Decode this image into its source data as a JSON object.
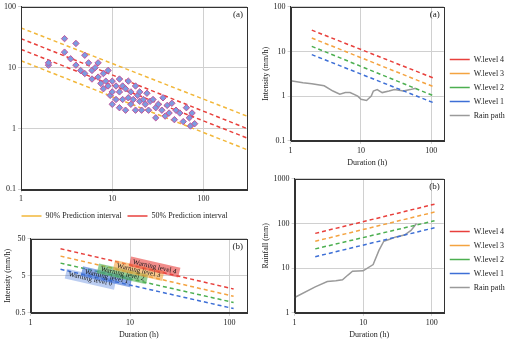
{
  "chart_data": [
    {
      "type": "scatter",
      "title": "(a)",
      "log": true,
      "grid": true,
      "legend": "bottom",
      "xlim": [
        1,
        300
      ],
      "ylim": [
        0.1,
        100
      ],
      "xticks": [
        1,
        10,
        100
      ],
      "yticks": [
        0.1,
        1,
        10,
        100
      ],
      "points": {
        "color": "#7b9be0",
        "marker": "diamond",
        "x": [
          2,
          2,
          3,
          3,
          3.5,
          4,
          4,
          4.5,
          5,
          5,
          5.5,
          6,
          6,
          6.5,
          7,
          7,
          7.5,
          8,
          8,
          8.5,
          9,
          9,
          9.5,
          10,
          10,
          10,
          11,
          11,
          12,
          12,
          12,
          13,
          13,
          14,
          14,
          15,
          15,
          16,
          16,
          17,
          18,
          18,
          19,
          20,
          20,
          21,
          22,
          23,
          24,
          25,
          26,
          28,
          30,
          30,
          32,
          35,
          36,
          38,
          40,
          42,
          45,
          48,
          50,
          55,
          60,
          65,
          70,
          72,
          75,
          80
        ],
        "y": [
          11,
          12,
          18,
          30,
          14,
          25,
          11,
          9,
          16,
          8,
          12,
          9,
          6.5,
          10,
          7,
          12,
          5.5,
          8,
          4.5,
          6,
          9,
          5,
          3.5,
          6,
          4,
          2.5,
          5,
          3,
          6.5,
          4,
          2.2,
          5,
          3,
          4.5,
          2,
          6,
          3.2,
          4,
          2.5,
          3,
          5,
          2,
          3.5,
          2.8,
          4,
          2,
          3,
          2.5,
          3.8,
          2,
          2.8,
          3,
          2.2,
          1.5,
          2.5,
          2,
          3.2,
          1.6,
          2.4,
          1.8,
          2.6,
          1.4,
          2,
          1.8,
          1.3,
          2.2,
          1.5,
          1.1,
          1.8,
          1.2
        ]
      },
      "series": [
        {
          "name": "90% Prediction interval",
          "color": "#f2b73a",
          "line_style": "dashed",
          "x": [
            1,
            300
          ],
          "upper": [
            45,
            1.6
          ],
          "lower": [
            13,
            0.45
          ]
        },
        {
          "name": "50% Prediction interval",
          "color": "#e8403c",
          "line_style": "dashed",
          "x": [
            1,
            300
          ],
          "upper": [
            30,
            1.0
          ],
          "lower": [
            20,
            0.7
          ]
        }
      ]
    },
    {
      "type": "line",
      "title": "(b)",
      "log": true,
      "grid": true,
      "x_label": "Duration (h)",
      "y_label": "Intensity (mm/h)",
      "xlim": [
        1,
        150
      ],
      "ylim": [
        0.5,
        50
      ],
      "xticks": [
        1,
        10,
        100
      ],
      "yticks": [
        0.5,
        5,
        50
      ],
      "series": [
        {
          "color": "#3d6fd6",
          "line_style": "dashed",
          "x": [
            2,
            110
          ],
          "values": [
            7.5,
            0.65
          ]
        },
        {
          "color": "#4caf50",
          "line_style": "dashed",
          "x": [
            2,
            110
          ],
          "values": [
            11,
            0.95
          ]
        },
        {
          "color": "#f4a340",
          "line_style": "dashed",
          "x": [
            2,
            110
          ],
          "values": [
            17,
            1.4
          ]
        },
        {
          "color": "#e8403c",
          "line_style": "dashed",
          "x": [
            2,
            110
          ],
          "values": [
            27,
            2.2
          ]
        }
      ],
      "annotations": [
        "Warning level 0",
        "Warning level 1",
        "Warning level 2",
        "Warning level 3",
        "Warning level 4"
      ]
    },
    {
      "type": "line",
      "title": "(a)",
      "log": true,
      "grid": true,
      "legend": "right",
      "x_label": "Duration (h)",
      "y_label": "Intensity (mm/h)",
      "xlim": [
        1,
        150
      ],
      "ylim": [
        0.1,
        100
      ],
      "xticks": [
        1,
        10,
        100
      ],
      "yticks": [
        0.1,
        1,
        10,
        100
      ],
      "series": [
        {
          "name": "W.level 4",
          "color": "#e8403c",
          "line_style": "dashed",
          "x": [
            2,
            110
          ],
          "values": [
            30,
            2.5
          ]
        },
        {
          "name": "W.level 3",
          "color": "#f4a340",
          "line_style": "dashed",
          "x": [
            2,
            110
          ],
          "values": [
            20,
            1.6
          ]
        },
        {
          "name": "W.level 2",
          "color": "#4caf50",
          "line_style": "dashed",
          "x": [
            2,
            110
          ],
          "values": [
            13,
            1.0
          ]
        },
        {
          "name": "W.level 1",
          "color": "#3d6fd6",
          "line_style": "dashed",
          "x": [
            2,
            110
          ],
          "values": [
            8.5,
            0.7
          ]
        },
        {
          "name": "Rain path",
          "color": "#9a9a9a",
          "line_style": "solid",
          "x": [
            1,
            1.5,
            2,
            3,
            4,
            5,
            6,
            7,
            9,
            10,
            12,
            14,
            15,
            17,
            20,
            25,
            30,
            40,
            50,
            60
          ],
          "values": [
            2.2,
            2.0,
            1.9,
            1.7,
            1.3,
            1.1,
            1.2,
            1.2,
            1.0,
            0.85,
            0.8,
            1.0,
            1.3,
            1.4,
            1.2,
            1.3,
            1.4,
            1.3,
            1.4,
            1.5
          ]
        }
      ]
    },
    {
      "type": "line",
      "title": "(b)",
      "log": true,
      "grid": true,
      "legend": "right",
      "x_label": "Duration (h)",
      "y_label": "Rainfall (mm)",
      "xlim": [
        1,
        150
      ],
      "ylim": [
        1,
        1000
      ],
      "xticks": [
        1,
        10,
        100
      ],
      "yticks": [
        1,
        10,
        100,
        1000
      ],
      "series": [
        {
          "name": "W.level 4",
          "color": "#e8403c",
          "line_style": "dashed",
          "x": [
            2,
            110
          ],
          "values": [
            60,
            270
          ]
        },
        {
          "name": "W.level 3",
          "color": "#f4a340",
          "line_style": "dashed",
          "x": [
            2,
            110
          ],
          "values": [
            40,
            180
          ]
        },
        {
          "name": "W.level 2",
          "color": "#4caf50",
          "line_style": "dashed",
          "x": [
            2,
            110
          ],
          "values": [
            27,
            115
          ]
        },
        {
          "name": "W.level 1",
          "color": "#3d6fd6",
          "line_style": "dashed",
          "x": [
            2,
            110
          ],
          "values": [
            18,
            80
          ]
        },
        {
          "name": "Rain path",
          "color": "#9a9a9a",
          "line_style": "solid",
          "x": [
            1,
            2,
            3,
            4,
            5,
            6,
            7,
            10,
            14,
            17,
            20,
            25,
            30,
            40,
            50,
            60
          ],
          "values": [
            2.2,
            3.8,
            5,
            5.2,
            5.5,
            7,
            8.5,
            8.7,
            12,
            25,
            40,
            45,
            50,
            55,
            70,
            100
          ]
        }
      ]
    }
  ]
}
